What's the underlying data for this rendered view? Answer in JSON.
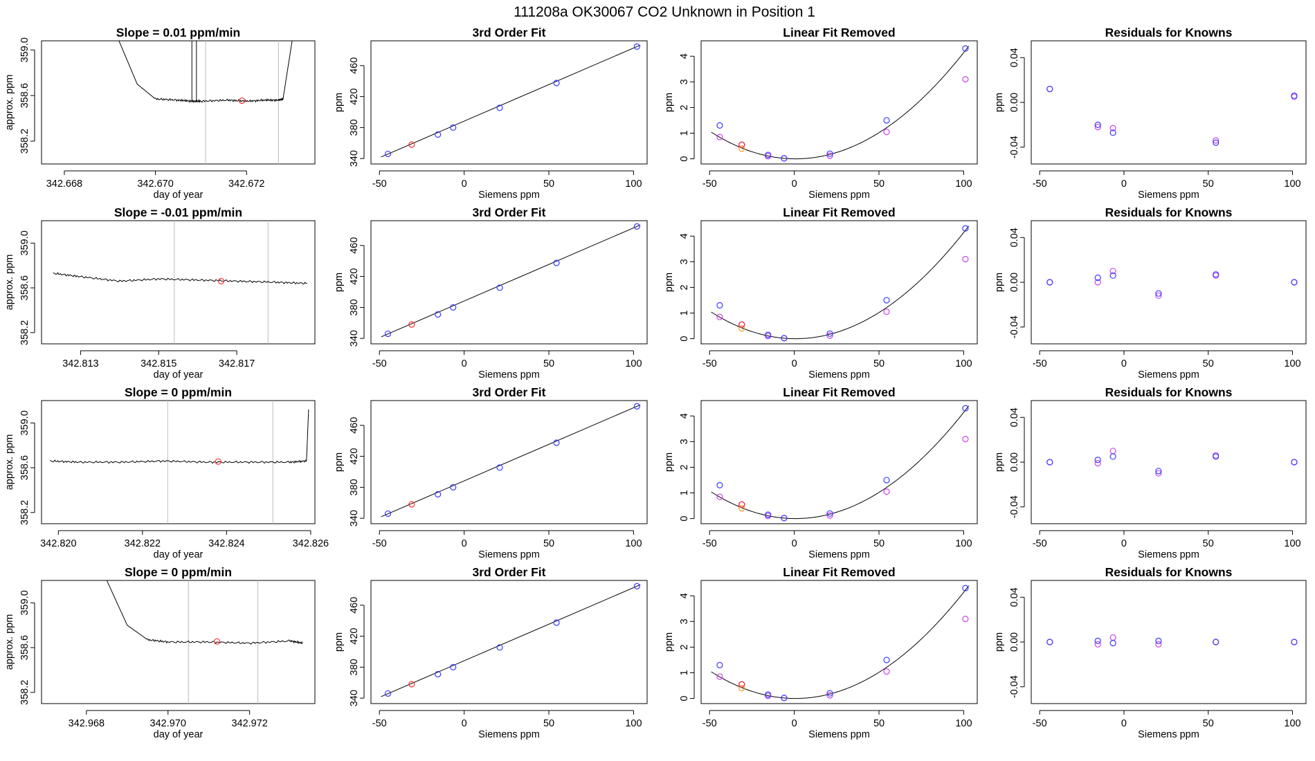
{
  "page": {
    "title": "111208a     OK30067   CO2 Unknown in Position  1"
  },
  "colors": {
    "known": "#3a3aff",
    "unknown": "#ff3030",
    "linear_removed_raw": "#cc44ee",
    "linear_removed_alt": "#ff9a1a",
    "residual_a": "#3a3aff",
    "residual_b": "#cc44ee",
    "line": "#000000",
    "window_marker": "#bbbbbb"
  },
  "rows": [
    {
      "trace": {
        "title": "Slope =  0.01  ppm/min",
        "xlabel": "day of year",
        "ylabel": "approx. ppm",
        "xticks": [
          "342.668",
          "342.670",
          "342.672"
        ],
        "yticks": [
          "358.2",
          "358.6",
          "359.0"
        ]
      }
    },
    {
      "trace": {
        "title": "Slope =  -0.01  ppm/min",
        "xlabel": "day of year",
        "ylabel": "approx. ppm",
        "xticks": [
          "342.813",
          "342.815",
          "342.817"
        ],
        "yticks": [
          "358.2",
          "358.6",
          "359.0"
        ]
      }
    },
    {
      "trace": {
        "title": "Slope =  0  ppm/min",
        "xlabel": "day of year",
        "ylabel": "approx. ppm",
        "xticks": [
          "342.820",
          "342.822",
          "342.824",
          "342.826"
        ],
        "yticks": [
          "358.2",
          "358.6",
          "359.0"
        ]
      }
    },
    {
      "trace": {
        "title": "Slope =  0  ppm/min",
        "xlabel": "day of year",
        "ylabel": "approx. ppm",
        "xticks": [
          "342.968",
          "342.970",
          "342.972"
        ],
        "yticks": [
          "358.2",
          "358.6",
          "359.0"
        ]
      }
    }
  ],
  "shared": {
    "fit_title": "3rd Order Fit",
    "lin_title": "Linear Fit Removed",
    "res_title": "Residuals for Knowns",
    "siemens_label": "Siemens ppm",
    "ppm_label": "ppm",
    "siemens_ticks": [
      "-50",
      "0",
      "50",
      "100"
    ],
    "fit_yticks": [
      "340",
      "380",
      "420",
      "460"
    ],
    "lin_yticks": [
      "0",
      "1",
      "2",
      "3",
      "4"
    ],
    "res_yticks": [
      "-0.04",
      "0.00",
      "0.04"
    ]
  },
  "chart_data": [
    {
      "type": "line",
      "panel": "trace",
      "row": 1,
      "title": "Slope =  0.01  ppm/min",
      "xlabel": "day of year",
      "ylabel": "approx. ppm",
      "xlim": [
        342.6675,
        342.6735
      ],
      "ylim": [
        358.0,
        359.08
      ],
      "series": [
        {
          "x": [
            342.6692,
            342.6696,
            342.67,
            342.6705,
            342.6708,
            342.671,
            342.6716,
            342.672,
            342.6724,
            342.6727,
            342.6728,
            342.673
          ],
          "y": [
            359.08,
            358.7,
            358.57,
            358.56,
            358.55,
            358.55,
            358.56,
            358.55,
            358.56,
            358.56,
            358.57,
            359.08
          ]
        }
      ],
      "spikes_at": [
        342.6708,
        342.6709
      ],
      "unknown_point": {
        "x": 342.6719,
        "y": 358.555
      },
      "window_lines_x": [
        342.6711,
        342.6727
      ]
    },
    {
      "type": "line",
      "panel": "trace",
      "row": 2,
      "title": "Slope =  -0.01  ppm/min",
      "xlabel": "day of year",
      "ylabel": "approx. ppm",
      "xlim": [
        342.812,
        342.819
      ],
      "ylim": [
        358.1,
        359.2
      ],
      "series": [
        {
          "x": [
            342.8123,
            342.813,
            342.814,
            342.815,
            342.816,
            342.817,
            342.818,
            342.8188
          ],
          "y": [
            358.73,
            358.7,
            358.66,
            358.68,
            358.67,
            358.66,
            358.65,
            358.64
          ]
        }
      ],
      "unknown_point": {
        "x": 342.8166,
        "y": 358.66
      },
      "window_lines_x": [
        342.8154,
        342.8178
      ]
    },
    {
      "type": "line",
      "panel": "trace",
      "row": 3,
      "title": "Slope =  0  ppm/min",
      "xlabel": "day of year",
      "ylabel": "approx. ppm",
      "xlim": [
        342.8196,
        342.8261
      ],
      "ylim": [
        358.1,
        359.2
      ],
      "series": [
        {
          "x": [
            342.8198,
            342.8205,
            342.8215,
            342.8225,
            342.8235,
            342.8245,
            342.8255,
            342.8259,
            342.82595
          ],
          "y": [
            358.66,
            358.65,
            358.65,
            358.66,
            358.65,
            358.65,
            358.65,
            358.66,
            359.12
          ]
        }
      ],
      "unknown_point": {
        "x": 342.8238,
        "y": 358.655
      },
      "window_lines_x": [
        342.8226,
        342.8251
      ]
    },
    {
      "type": "line",
      "panel": "trace",
      "row": 4,
      "title": "Slope =  0  ppm/min",
      "xlabel": "day of year",
      "ylabel": "approx. ppm",
      "xlim": [
        342.9669,
        342.9736
      ],
      "ylim": [
        358.1,
        359.2
      ],
      "series": [
        {
          "x": [
            342.9685,
            342.969,
            342.9695,
            342.97,
            342.971,
            342.972,
            342.973,
            342.9733
          ],
          "y": [
            359.2,
            358.8,
            358.67,
            358.65,
            358.65,
            358.64,
            358.66,
            358.64
          ]
        }
      ],
      "unknown_point": {
        "x": 342.9712,
        "y": 358.655
      },
      "window_lines_x": [
        342.9705,
        342.9722
      ]
    },
    {
      "type": "scatter",
      "panel": "fit",
      "title": "3rd Order Fit",
      "xlabel": "Siemens ppm",
      "ylabel": "ppm",
      "xlim": [
        -55,
        108
      ],
      "ylim": [
        333,
        492
      ],
      "knowns": {
        "x": [
          -45,
          -15.5,
          -6.5,
          21,
          54.5,
          102
        ],
        "y": [
          346,
          371,
          380,
          405.5,
          437.5,
          484.5
        ]
      },
      "unknown": {
        "x": -31,
        "y": 358
      },
      "fit_line": {
        "x": [
          -49,
          104
        ],
        "y": [
          342,
          486.5
        ]
      }
    },
    {
      "type": "scatter",
      "panel": "linear_removed",
      "title": "Linear Fit Removed",
      "xlabel": "Siemens ppm",
      "ylabel": "ppm",
      "xlim": [
        -55,
        108
      ],
      "ylim": [
        -0.2,
        4.6
      ],
      "knowns": {
        "x": [
          -44,
          -31,
          -15.5,
          -6,
          21,
          54.5,
          101
        ],
        "y": [
          1.3,
          0.55,
          0.15,
          0.02,
          0.2,
          1.5,
          4.3
        ]
      },
      "removed_raw": {
        "x": [
          -44,
          -31,
          -15.5,
          -6,
          21,
          54.5,
          101
        ],
        "y": [
          0.85,
          0.55,
          0.1,
          0.02,
          0.12,
          1.05,
          3.1
        ]
      },
      "unknown": {
        "x": -31,
        "y": 0.55
      },
      "unknown_alt": {
        "x": -31,
        "y": 0.4
      },
      "quadratic": {
        "a": 0.00042,
        "b": -0.0006,
        "c": 0.0,
        "x_range": [
          -49,
          103
        ]
      }
    },
    {
      "type": "scatter",
      "panel": "residuals",
      "row": 1,
      "title": "Residuals for Knowns",
      "xlabel": "Siemens ppm",
      "xlim": [
        -55,
        108
      ],
      "ylim": [
        -0.055,
        0.055
      ],
      "series": [
        {
          "name": "",
          "x": [
            -44,
            -15.5,
            -6.5,
            54.5,
            101
          ],
          "y": [
            0.012,
            -0.02,
            -0.027,
            -0.036,
            0.006
          ]
        },
        {
          "name": "",
          "x": [
            -44,
            -15.5,
            -6.5,
            54.5,
            101
          ],
          "y": [
            0.012,
            -0.022,
            -0.023,
            -0.034,
            0.005
          ]
        }
      ]
    },
    {
      "type": "scatter",
      "panel": "residuals",
      "row": 2,
      "title": "Residuals for Knowns",
      "xlabel": "Siemens ppm",
      "xlim": [
        -55,
        108
      ],
      "ylim": [
        -0.055,
        0.055
      ],
      "series": [
        {
          "name": "",
          "x": [
            -44,
            -15.5,
            -6.5,
            20.5,
            54.5,
            101
          ],
          "y": [
            0.0,
            0.004,
            0.006,
            -0.01,
            0.007,
            0.0
          ]
        },
        {
          "name": "",
          "x": [
            -44,
            -15.5,
            -6.5,
            20.5,
            54.5,
            101
          ],
          "y": [
            0.0,
            0.0,
            0.01,
            -0.012,
            0.006,
            0.0
          ]
        }
      ]
    },
    {
      "type": "scatter",
      "panel": "residuals",
      "row": 3,
      "title": "Residuals for Knowns",
      "xlabel": "Siemens ppm",
      "xlim": [
        -55,
        108
      ],
      "ylim": [
        -0.055,
        0.055
      ],
      "series": [
        {
          "name": "",
          "x": [
            -44,
            -15.5,
            -6.5,
            20.5,
            54.5,
            101
          ],
          "y": [
            0.0,
            0.002,
            0.005,
            -0.008,
            0.005,
            0.0
          ]
        },
        {
          "name": "",
          "x": [
            -44,
            -15.5,
            -6.5,
            20.5,
            54.5,
            101
          ],
          "y": [
            0.0,
            -0.001,
            0.01,
            -0.01,
            0.006,
            0.0
          ]
        }
      ]
    },
    {
      "type": "scatter",
      "panel": "residuals",
      "row": 4,
      "title": "Residuals for Knowns",
      "xlabel": "Siemens ppm",
      "xlim": [
        -55,
        108
      ],
      "ylim": [
        -0.055,
        0.055
      ],
      "series": [
        {
          "name": "",
          "x": [
            -44,
            -15.5,
            -6.5,
            20.5,
            54.5,
            101
          ],
          "y": [
            0.0,
            0.001,
            -0.001,
            0.001,
            0.0,
            0.0
          ]
        },
        {
          "name": "",
          "x": [
            -44,
            -15.5,
            -6.5,
            20.5,
            54.5,
            101
          ],
          "y": [
            0.0,
            -0.002,
            0.004,
            -0.002,
            0.0,
            0.0
          ]
        }
      ]
    }
  ]
}
